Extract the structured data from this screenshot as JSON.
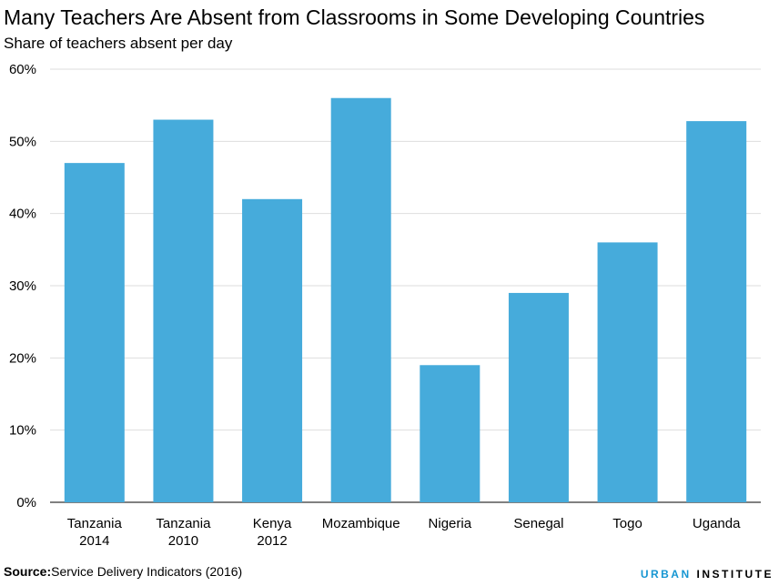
{
  "chart_data": {
    "type": "bar",
    "title": "Many Teachers Are Absent from Classrooms in Some Developing Countries",
    "subtitle": "Share of teachers absent per day",
    "categories": [
      [
        "Tanzania",
        "2014"
      ],
      [
        "Tanzania",
        "2010"
      ],
      [
        "Kenya",
        "2012"
      ],
      [
        "Mozambique"
      ],
      [
        "Nigeria"
      ],
      [
        "Senegal"
      ],
      [
        "Togo"
      ],
      [
        "Uganda"
      ]
    ],
    "values": [
      47,
      53,
      42,
      56,
      19,
      29,
      36,
      52.8
    ],
    "ylim": [
      0,
      60
    ],
    "yticks": [
      0,
      10,
      20,
      30,
      40,
      50,
      60
    ],
    "ytick_labels": [
      "0%",
      "10%",
      "20%",
      "30%",
      "40%",
      "50%",
      "60%"
    ],
    "xlabel": "",
    "ylabel": "",
    "grid": true,
    "bar_color": "#46abdb",
    "grid_color": "#dedede"
  },
  "footer": {
    "source_label": "Source:",
    "source_text": "Service Delivery Indicators (2016)",
    "brand_part1": "URBAN",
    "brand_part2": "INSTITUTE",
    "brand_color": "#1696d2"
  }
}
